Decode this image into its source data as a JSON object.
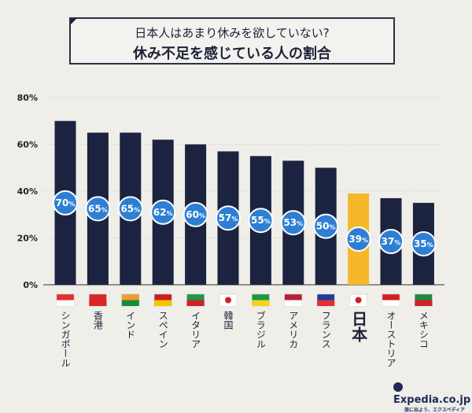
{
  "chart_data": {
    "type": "bar",
    "title": "休み不足を感じている人の割合",
    "subtitle": "日本人はあまり休みを欲していない?",
    "categories": [
      "シンガポール",
      "香港",
      "インド",
      "スペイン",
      "イタリア",
      "韓国",
      "ブラジル",
      "アメリカ",
      "フランス",
      "日本",
      "オーストリア",
      "メキシコ"
    ],
    "values": [
      70,
      65,
      65,
      62,
      60,
      57,
      55,
      53,
      50,
      39,
      37,
      35
    ],
    "value_suffix": "%",
    "highlight": "日本",
    "ylim": [
      0,
      80
    ],
    "yticks": [
      0,
      20,
      40,
      60,
      80
    ],
    "ytick_labels": [
      "0%",
      "20%",
      "40%",
      "60%",
      "80%"
    ],
    "grid": false,
    "colors": {
      "bar": "#1b2340",
      "highlight": "#f5b82a",
      "label_circle": "#2e7fd3",
      "background": "#efeee8"
    }
  },
  "logo": {
    "name": "Expedia.co.jp",
    "tagline": "旅に出よう、エクスペディア"
  }
}
